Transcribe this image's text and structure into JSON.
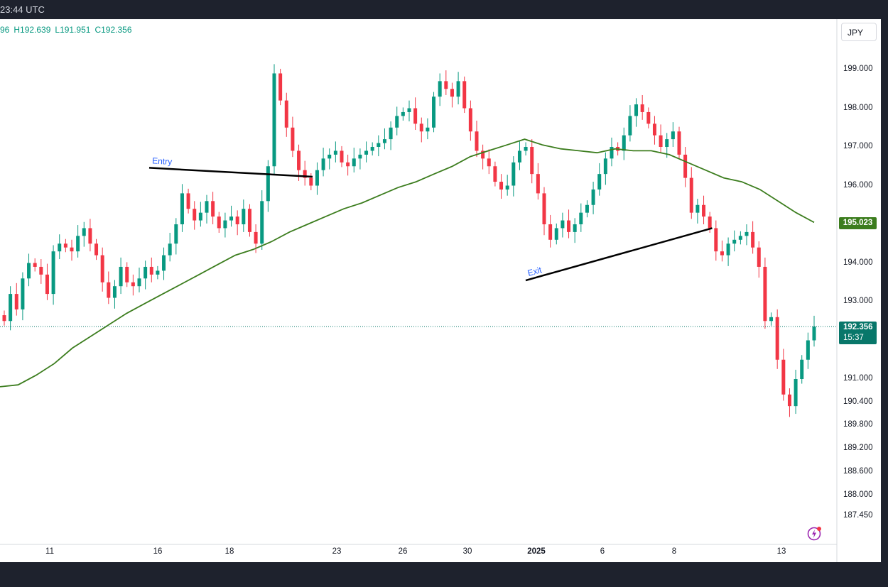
{
  "header": {
    "time": "23:44 UTC"
  },
  "legend": {
    "ohlc_o": "96",
    "ohlc_h": "H192.639",
    "ohlc_l": "L191.951",
    "ohlc_c": "C192.356"
  },
  "currency_button": "JPY",
  "price_axis": [
    "199.000",
    "198.000",
    "197.000",
    "196.000",
    "194.000",
    "193.000",
    "191.000",
    "190.400",
    "189.800",
    "189.200",
    "188.600",
    "188.000",
    "187.450"
  ],
  "time_axis": [
    {
      "label": "11",
      "bold": false
    },
    {
      "label": "16",
      "bold": false
    },
    {
      "label": "18",
      "bold": false
    },
    {
      "label": "23",
      "bold": false
    },
    {
      "label": "26",
      "bold": false
    },
    {
      "label": "30",
      "bold": false
    },
    {
      "label": "2025",
      "bold": true
    },
    {
      "label": "6",
      "bold": false
    },
    {
      "label": "8",
      "bold": false
    },
    {
      "label": "13",
      "bold": false
    }
  ],
  "ma_value": "195.023",
  "last_price": {
    "value": "192.356",
    "countdown": "15:37"
  },
  "annotations": {
    "entry_label": "Entry",
    "exit_label": "Exit"
  },
  "colors": {
    "up": "#089981",
    "down": "#f23645",
    "ma": "#3c7d1e",
    "trendline": "#000000",
    "annotation_text": "#2962ff",
    "background": "#ffffff",
    "chrome": "#1e222d"
  },
  "icons": {
    "snapshot": "lightning-icon"
  },
  "chart_data": {
    "type": "candlestick",
    "unit": "JPY",
    "ma_series_name": "Moving Average",
    "close_path": [
      192.5,
      193.2,
      192.8,
      193.6,
      194.0,
      193.9,
      193.7,
      193.2,
      194.3,
      194.5,
      194.4,
      194.3,
      194.7,
      194.9,
      194.5,
      194.2,
      193.5,
      193.1,
      193.4,
      193.9,
      193.5,
      193.4,
      193.6,
      193.9,
      193.7,
      193.8,
      194.2,
      194.5,
      195.0,
      195.8,
      195.4,
      195.1,
      195.3,
      195.6,
      195.2,
      194.9,
      195.1,
      195.2,
      195.0,
      195.4,
      194.8,
      194.5,
      195.6,
      196.5,
      198.9,
      198.2,
      197.5,
      196.9,
      196.4,
      196.2,
      196.0,
      196.4,
      196.7,
      196.8,
      196.9,
      196.6,
      196.5,
      196.7,
      196.8,
      196.9,
      197.0,
      197.1,
      197.2,
      197.5,
      197.8,
      197.9,
      198.0,
      197.6,
      197.4,
      197.5,
      198.3,
      198.7,
      198.5,
      198.3,
      198.7,
      198.0,
      197.4,
      196.9,
      196.7,
      196.5,
      196.1,
      195.9,
      196.0,
      196.6,
      196.9,
      197.0,
      196.3,
      195.8,
      195.0,
      194.6,
      194.9,
      195.1,
      194.8,
      195.0,
      195.3,
      195.5,
      195.9,
      196.3,
      196.7,
      197.0,
      196.9,
      197.3,
      197.8,
      198.1,
      197.9,
      197.6,
      197.3,
      197.0,
      197.2,
      197.4,
      196.8,
      196.2,
      195.3,
      195.5,
      195.2,
      194.9,
      194.3,
      194.2,
      194.5,
      194.6,
      194.7,
      194.8,
      194.4,
      193.9,
      192.5,
      192.6,
      191.5,
      190.6,
      190.3,
      191.0,
      191.5,
      192.0,
      192.356
    ],
    "ma_path": [
      190.8,
      190.85,
      191.1,
      191.4,
      191.8,
      192.1,
      192.4,
      192.7,
      192.95,
      193.2,
      193.45,
      193.7,
      193.95,
      194.2,
      194.35,
      194.55,
      194.8,
      195.0,
      195.2,
      195.4,
      195.55,
      195.75,
      195.95,
      196.1,
      196.3,
      196.5,
      196.75,
      196.9,
      197.05,
      197.2,
      197.05,
      196.95,
      196.9,
      196.85,
      196.95,
      196.9,
      196.9,
      196.8,
      196.6,
      196.4,
      196.2,
      196.1,
      195.9,
      195.6,
      195.3,
      195.05
    ],
    "ma_last": 195.023,
    "last_close": 192.356,
    "session_high": 192.639,
    "session_low": 191.951,
    "trendlines": [
      {
        "label": "Entry",
        "from": [
          0.168,
          196.46
        ],
        "to": [
          0.352,
          196.23
        ]
      },
      {
        "label": "Exit",
        "from": [
          0.592,
          193.55
        ],
        "to": [
          0.802,
          194.9
        ]
      }
    ],
    "ylim": [
      187.3,
      200.0
    ]
  }
}
